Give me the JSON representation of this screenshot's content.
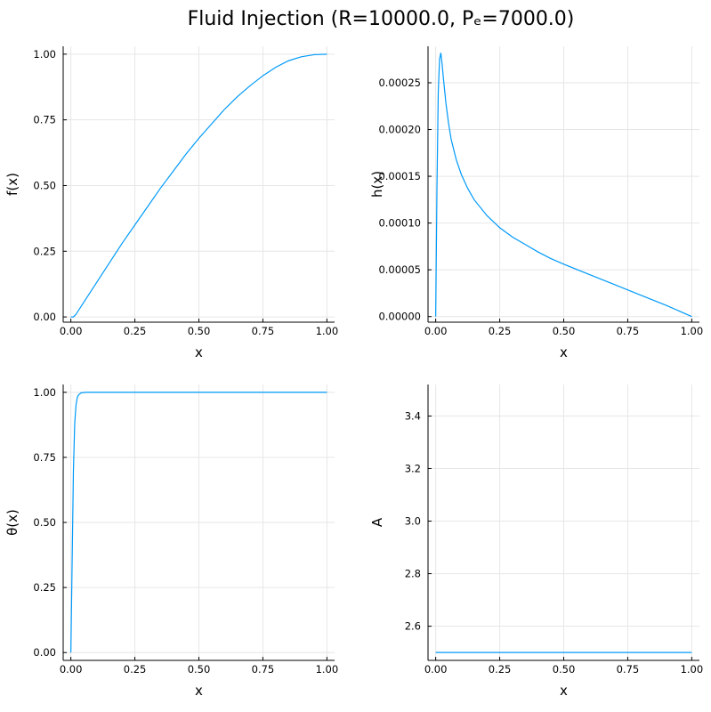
{
  "figure": {
    "title": "Fluid Injection (R=10000.0, Pₑ=7000.0)"
  },
  "colors": {
    "series": "#009AFA",
    "grid": "#e6e6e6",
    "axis": "#000000"
  },
  "chart_data": [
    {
      "type": "line",
      "xlabel": "x",
      "ylabel": "f(x)",
      "xlim": [
        -0.03,
        1.03
      ],
      "ylim": [
        -0.02,
        1.03
      ],
      "xticks": [
        0,
        0.25,
        0.5,
        0.75,
        1
      ],
      "xtick_labels": [
        "0.00",
        "0.25",
        "0.50",
        "0.75",
        "1.00"
      ],
      "yticks": [
        0,
        0.25,
        0.5,
        0.75,
        1
      ],
      "ytick_labels": [
        "0.00",
        "0.25",
        "0.50",
        "0.75",
        "1.00"
      ],
      "grid": true,
      "series": [
        {
          "x": [
            0,
            0.01,
            0.02,
            0.05,
            0.1,
            0.15,
            0.2,
            0.25,
            0.3,
            0.35,
            0.4,
            0.45,
            0.5,
            0.55,
            0.6,
            0.65,
            0.7,
            0.75,
            0.8,
            0.85,
            0.9,
            0.95,
            1.0
          ],
          "y": [
            0,
            0,
            0.01,
            0.055,
            0.13,
            0.205,
            0.28,
            0.35,
            0.42,
            0.49,
            0.555,
            0.62,
            0.68,
            0.735,
            0.79,
            0.838,
            0.88,
            0.918,
            0.95,
            0.975,
            0.99,
            0.998,
            1.0
          ]
        }
      ]
    },
    {
      "type": "line",
      "xlabel": "x",
      "ylabel": "h(x)",
      "xlim": [
        -0.03,
        1.03
      ],
      "ylim": [
        -6e-06,
        0.000289
      ],
      "xticks": [
        0,
        0.25,
        0.5,
        0.75,
        1
      ],
      "xtick_labels": [
        "0.00",
        "0.25",
        "0.50",
        "0.75",
        "1.00"
      ],
      "yticks": [
        0,
        5e-05,
        0.0001,
        0.00015,
        0.0002,
        0.00025
      ],
      "ytick_labels": [
        "0.00000",
        "0.00005",
        "0.00010",
        "0.00015",
        "0.00020",
        "0.00025"
      ],
      "grid": true,
      "series": [
        {
          "x": [
            0,
            0.005,
            0.01,
            0.015,
            0.02,
            0.025,
            0.03,
            0.04,
            0.05,
            0.06,
            0.08,
            0.1,
            0.125,
            0.15,
            0.2,
            0.25,
            0.3,
            0.35,
            0.4,
            0.45,
            0.5,
            0.6,
            0.7,
            0.8,
            0.9,
            1.0
          ],
          "y": [
            0,
            0.00014,
            0.00024,
            0.000275,
            0.000282,
            0.00027,
            0.000255,
            0.000228,
            0.000207,
            0.00019,
            0.000168,
            0.000152,
            0.000137,
            0.000125,
            0.000108,
            9.5e-05,
            8.5e-05,
            7.7e-05,
            6.9e-05,
            6.2e-05,
            5.6e-05,
            4.5e-05,
            3.4e-05,
            2.3e-05,
            1.2e-05,
            0.0
          ]
        }
      ]
    },
    {
      "type": "line",
      "xlabel": "x",
      "ylabel": "θ(x)",
      "xlim": [
        -0.03,
        1.03
      ],
      "ylim": [
        -0.03,
        1.03
      ],
      "xticks": [
        0,
        0.25,
        0.5,
        0.75,
        1
      ],
      "xtick_labels": [
        "0.00",
        "0.25",
        "0.50",
        "0.75",
        "1.00"
      ],
      "yticks": [
        0,
        0.25,
        0.5,
        0.75,
        1
      ],
      "ytick_labels": [
        "0.00",
        "0.25",
        "0.50",
        "0.75",
        "1.00"
      ],
      "grid": true,
      "series": [
        {
          "x": [
            0,
            0.005,
            0.01,
            0.015,
            0.02,
            0.025,
            0.03,
            0.04,
            0.06,
            0.1,
            0.5,
            1.0
          ],
          "y": [
            0,
            0.35,
            0.7,
            0.88,
            0.95,
            0.98,
            0.99,
            0.998,
            1.0,
            1.0,
            1.0,
            1.0
          ]
        }
      ]
    },
    {
      "type": "line",
      "xlabel": "x",
      "ylabel": "A",
      "xlim": [
        -0.03,
        1.03
      ],
      "ylim": [
        2.47,
        3.52
      ],
      "xticks": [
        0,
        0.25,
        0.5,
        0.75,
        1
      ],
      "xtick_labels": [
        "0.00",
        "0.25",
        "0.50",
        "0.75",
        "1.00"
      ],
      "yticks": [
        2.6,
        2.8,
        3.0,
        3.2,
        3.4
      ],
      "ytick_labels": [
        "2.6",
        "2.8",
        "3.0",
        "3.2",
        "3.4"
      ],
      "grid": true,
      "series": [
        {
          "x": [
            0,
            1.0
          ],
          "y": [
            2.5,
            2.5
          ]
        }
      ]
    }
  ]
}
